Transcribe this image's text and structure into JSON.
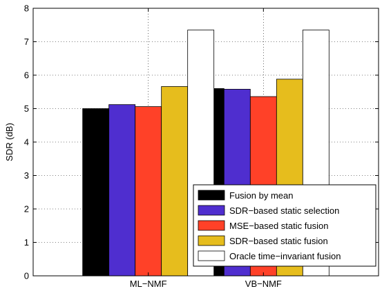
{
  "chart_data": {
    "type": "bar",
    "categories": [
      "ML−NMF",
      "VB−NMF"
    ],
    "ylabel": "SDR (dB)",
    "xlabel": "",
    "ylim": [
      0,
      8
    ],
    "yticks": [
      "0",
      "1",
      "2",
      "3",
      "4",
      "5",
      "6",
      "7",
      "8"
    ],
    "grid": true,
    "legend_position": "bottom-right",
    "series": [
      {
        "name": "Fusion by mean",
        "color": "#000000",
        "values": [
          5.0,
          5.6
        ]
      },
      {
        "name": "SDR−based static selection",
        "color": "#4f2ecf",
        "values": [
          5.12,
          5.58
        ]
      },
      {
        "name": "MSE−based static fusion",
        "color": "#ff4128",
        "values": [
          5.06,
          5.36
        ]
      },
      {
        "name": "SDR−based static fusion",
        "color": "#e6bd1d",
        "values": [
          5.66,
          5.88
        ]
      },
      {
        "name": "Oracle time−invariant fusion",
        "color": "#ffffff",
        "values": [
          7.35,
          7.35
        ]
      }
    ]
  }
}
